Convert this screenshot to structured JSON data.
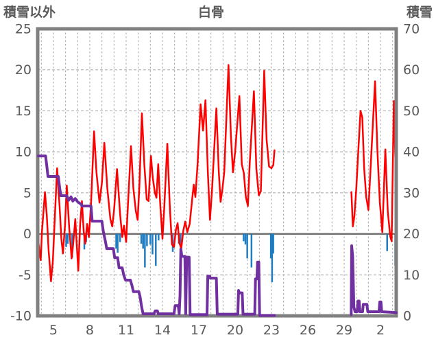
{
  "header": {
    "left_label": "積雪以外",
    "title": "白骨",
    "right_label": "積雪"
  },
  "colors": {
    "temperature_line": "#FF0000",
    "snow_depth_line": "#7030A0",
    "precip_bar": "#1F7DC2",
    "frame": "#808080",
    "zero_line": "#808080",
    "grid": "#A3A3A3",
    "tick_text": "#595959"
  },
  "chart_data": {
    "type": "line",
    "title": "白骨",
    "left_axis": {
      "label": "積雪以外",
      "min": -10,
      "max": 25,
      "ticks": [
        25,
        20,
        15,
        10,
        5,
        0,
        -5,
        -10
      ],
      "grid_step": 5
    },
    "right_axis": {
      "label": "積雪",
      "min": 0,
      "max": 70,
      "ticks": [
        70,
        60,
        50,
        40,
        30,
        20,
        10,
        0
      ]
    },
    "x_axis": {
      "min": 3.7,
      "max": 33.3,
      "grid_day_step": 1,
      "tick_labels": [
        {
          "day": 5,
          "label": "5"
        },
        {
          "day": 8,
          "label": "8"
        },
        {
          "day": 11,
          "label": "11"
        },
        {
          "day": 14,
          "label": "14"
        },
        {
          "day": 17,
          "label": "17"
        },
        {
          "day": 20,
          "label": "20"
        },
        {
          "day": 23,
          "label": "23"
        },
        {
          "day": 26,
          "label": "26"
        },
        {
          "day": 29,
          "label": "29"
        },
        {
          "day": 32,
          "label": "2"
        }
      ]
    },
    "series": [
      {
        "id": "temperature",
        "type": "line",
        "axis": "left",
        "color": "#FF0000",
        "width": 2.5,
        "segments": [
          [
            [
              3.76,
              -1.0
            ],
            [
              3.82,
              -1.8
            ],
            [
              3.95,
              -3.2
            ],
            [
              4.05,
              0.3
            ],
            [
              4.3,
              5.1
            ],
            [
              4.45,
              2.2
            ],
            [
              4.6,
              -2.0
            ],
            [
              4.8,
              -5.8
            ],
            [
              4.95,
              -3.3
            ],
            [
              5.1,
              1.5
            ],
            [
              5.3,
              8.0
            ],
            [
              5.5,
              3.5
            ],
            [
              5.65,
              -0.6
            ],
            [
              5.78,
              -2.4
            ],
            [
              5.95,
              1.0
            ],
            [
              6.1,
              5.9
            ],
            [
              6.3,
              0.8
            ],
            [
              6.5,
              -3.0
            ],
            [
              6.63,
              -1.2
            ],
            [
              6.8,
              1.8
            ],
            [
              7.05,
              -4.5
            ],
            [
              7.2,
              1.0
            ],
            [
              7.35,
              4.0
            ],
            [
              7.5,
              0.3
            ],
            [
              7.62,
              -1.2
            ],
            [
              7.78,
              1.2
            ],
            [
              7.92,
              -0.4
            ],
            [
              8.1,
              3.5
            ],
            [
              8.35,
              12.5
            ],
            [
              8.55,
              7.5
            ],
            [
              8.8,
              3.8
            ],
            [
              9.0,
              6.2
            ],
            [
              9.2,
              11.1
            ],
            [
              9.45,
              5.5
            ],
            [
              9.7,
              1.8
            ],
            [
              9.85,
              0.9
            ],
            [
              10.0,
              2.8
            ],
            [
              10.25,
              7.9
            ],
            [
              10.5,
              2.5
            ],
            [
              10.68,
              -0.4
            ],
            [
              10.82,
              1.0
            ],
            [
              11.0,
              -1.0
            ],
            [
              11.15,
              3.5
            ],
            [
              11.4,
              10.7
            ],
            [
              11.6,
              5.5
            ],
            [
              11.8,
              2.8
            ],
            [
              11.95,
              1.7
            ],
            [
              12.1,
              6.0
            ],
            [
              12.3,
              14.7
            ],
            [
              12.5,
              8.5
            ],
            [
              12.7,
              4.2
            ],
            [
              12.85,
              4.0
            ],
            [
              13.05,
              9.5
            ],
            [
              13.2,
              6.8
            ],
            [
              13.38,
              5.0
            ],
            [
              13.5,
              4.4
            ],
            [
              13.65,
              8.5
            ],
            [
              13.82,
              3.5
            ],
            [
              14.0,
              -0.6
            ],
            [
              14.15,
              3.2
            ],
            [
              14.4,
              11.0
            ],
            [
              14.6,
              3.5
            ],
            [
              14.78,
              -1.3
            ],
            [
              14.95,
              -1.6
            ],
            [
              15.1,
              0.4
            ],
            [
              15.25,
              1.3
            ],
            [
              15.4,
              -1.1
            ],
            [
              15.55,
              -1.8
            ],
            [
              15.72,
              0.4
            ],
            [
              15.88,
              1.5
            ],
            [
              16.05,
              0.2
            ],
            [
              16.25,
              1.2
            ],
            [
              16.45,
              4.2
            ],
            [
              16.58,
              6.0
            ],
            [
              16.72,
              4.5
            ],
            [
              16.9,
              8.5
            ],
            [
              17.15,
              15.8
            ],
            [
              17.35,
              12.6
            ],
            [
              17.55,
              16.3
            ],
            [
              17.75,
              7.5
            ],
            [
              17.92,
              1.7
            ],
            [
              18.1,
              5.5
            ],
            [
              18.45,
              15.3
            ],
            [
              18.65,
              7.5
            ],
            [
              18.8,
              3.9
            ],
            [
              18.95,
              5.5
            ],
            [
              19.1,
              7.5
            ],
            [
              19.45,
              20.6
            ],
            [
              19.65,
              12.0
            ],
            [
              19.82,
              7.5
            ],
            [
              20.0,
              10.0
            ],
            [
              20.35,
              16.8
            ],
            [
              20.55,
              8.5
            ],
            [
              20.72,
              7.4
            ],
            [
              20.88,
              4.5
            ],
            [
              21.05,
              3.4
            ],
            [
              21.2,
              8.5
            ],
            [
              21.55,
              17.4
            ],
            [
              21.75,
              8.0
            ],
            [
              21.95,
              4.7
            ],
            [
              22.12,
              5.2
            ],
            [
              22.4,
              19.9
            ],
            [
              22.6,
              11.5
            ],
            [
              22.8,
              8.2
            ],
            [
              23.0,
              8.0
            ],
            [
              23.15,
              8.4
            ],
            [
              23.25,
              10.2
            ]
          ],
          [
            [
              29.6,
              5.1
            ],
            [
              29.72,
              0.9
            ],
            [
              29.85,
              2.2
            ],
            [
              30.0,
              5.5
            ],
            [
              30.18,
              10.5
            ],
            [
              30.35,
              15.0
            ],
            [
              30.5,
              14.2
            ],
            [
              30.65,
              8.0
            ],
            [
              30.82,
              4.5
            ],
            [
              31.0,
              2.9
            ],
            [
              31.2,
              8.5
            ],
            [
              31.55,
              18.6
            ],
            [
              31.75,
              10.0
            ],
            [
              31.95,
              3.8
            ],
            [
              32.15,
              0.2
            ],
            [
              32.4,
              10.3
            ],
            [
              32.6,
              2.8
            ],
            [
              32.8,
              -0.3
            ],
            [
              32.92,
              -0.9
            ],
            [
              33.1,
              16.2
            ],
            [
              33.22,
              9.5
            ],
            [
              33.3,
              6.9
            ]
          ]
        ]
      },
      {
        "id": "snow_depth",
        "type": "line",
        "axis": "right",
        "color": "#7030A0",
        "width": 4,
        "segments": [
          [
            [
              3.76,
              39
            ],
            [
              4.35,
              39
            ],
            [
              4.45,
              36.5
            ],
            [
              4.55,
              34
            ],
            [
              5.4,
              34
            ],
            [
              5.52,
              31
            ],
            [
              5.62,
              29.3
            ],
            [
              6.1,
              29.3
            ],
            [
              6.25,
              28.2
            ],
            [
              6.45,
              29.0
            ],
            [
              6.6,
              28.0
            ],
            [
              6.8,
              28.6
            ],
            [
              7.0,
              27.8
            ],
            [
              7.3,
              27.2
            ],
            [
              7.35,
              26.8
            ],
            [
              8.1,
              26.8
            ],
            [
              8.2,
              23.1
            ],
            [
              9.0,
              23.1
            ],
            [
              9.12,
              20.5
            ],
            [
              9.28,
              18.3
            ],
            [
              9.4,
              16.4
            ],
            [
              9.95,
              16.4
            ],
            [
              10.05,
              14.2
            ],
            [
              10.3,
              14.2
            ],
            [
              10.42,
              11.7
            ],
            [
              10.68,
              11.7
            ],
            [
              10.8,
              10.0
            ],
            [
              10.95,
              8.7
            ],
            [
              11.35,
              8.7
            ],
            [
              11.48,
              7.4
            ],
            [
              11.6,
              5.9
            ],
            [
              12.05,
              5.9
            ],
            [
              12.15,
              4.7
            ],
            [
              12.28,
              2.2
            ],
            [
              12.4,
              0.5
            ],
            [
              13.3,
              0.5
            ],
            [
              13.4,
              1.2
            ],
            [
              13.58,
              1.2
            ],
            [
              13.65,
              0.5
            ],
            [
              14.95,
              0.5
            ],
            [
              15.05,
              2.5
            ],
            [
              15.3,
              2.5
            ],
            [
              15.38,
              0.5
            ],
            [
              15.45,
              5.0
            ],
            [
              15.52,
              16.3
            ],
            [
              15.6,
              14.5
            ],
            [
              15.85,
              14.5
            ],
            [
              15.92,
              0.5
            ],
            [
              16.0,
              14.3
            ],
            [
              16.2,
              14.3
            ],
            [
              16.28,
              0.3
            ],
            [
              17.68,
              0.3
            ],
            [
              17.74,
              9.7
            ],
            [
              17.9,
              9.7
            ],
            [
              17.95,
              9.2
            ],
            [
              18.45,
              9.2
            ],
            [
              18.52,
              0.4
            ],
            [
              20.22,
              0.4
            ],
            [
              20.28,
              6.2
            ],
            [
              20.35,
              5.6
            ],
            [
              20.58,
              5.6
            ],
            [
              20.65,
              0.4
            ],
            [
              21.62,
              0.4
            ],
            [
              21.68,
              9.0
            ],
            [
              21.8,
              9.0
            ],
            [
              21.85,
              13.1
            ],
            [
              21.95,
              13.1
            ],
            [
              22.02,
              0.1
            ],
            [
              23.25,
              0.1
            ]
          ],
          [
            [
              29.58,
              0.3
            ],
            [
              29.62,
              17.1
            ],
            [
              29.7,
              14.5
            ],
            [
              29.8,
              2.2
            ],
            [
              29.9,
              1.0
            ],
            [
              30.08,
              1.0
            ],
            [
              30.14,
              3.6
            ],
            [
              30.24,
              3.6
            ],
            [
              30.3,
              1.0
            ],
            [
              30.52,
              1.0
            ],
            [
              30.58,
              2.8
            ],
            [
              30.88,
              2.8
            ],
            [
              30.95,
              1.0
            ],
            [
              31.88,
              1.0
            ],
            [
              31.94,
              3.4
            ],
            [
              32.04,
              3.4
            ],
            [
              32.1,
              1.0
            ],
            [
              33.3,
              0.8
            ]
          ]
        ]
      },
      {
        "id": "precipitation",
        "type": "bar",
        "axis": "left",
        "color": "#1F7DC2",
        "bar_width": 2.5,
        "points": [
          [
            6.05,
            -1.6
          ],
          [
            6.18,
            -1.2
          ],
          [
            6.55,
            -2.9
          ],
          [
            7.55,
            -1.9
          ],
          [
            7.7,
            -1.0
          ],
          [
            10.18,
            -1.8
          ],
          [
            10.3,
            -2.3
          ],
          [
            10.5,
            -1.0
          ],
          [
            12.25,
            -1.2
          ],
          [
            12.4,
            -1.8
          ],
          [
            12.55,
            -4.1
          ],
          [
            12.72,
            -1.5
          ],
          [
            13.0,
            -1.3
          ],
          [
            13.18,
            -2.5
          ],
          [
            13.45,
            -3.9
          ],
          [
            13.68,
            -0.8
          ],
          [
            14.85,
            -2.2
          ],
          [
            15.35,
            -1.2
          ],
          [
            15.5,
            -1.6
          ],
          [
            20.7,
            -0.9
          ],
          [
            20.85,
            -1.3
          ],
          [
            21.0,
            -3.0
          ],
          [
            21.35,
            -4.1
          ],
          [
            22.95,
            -3.0
          ],
          [
            23.05,
            -5.9
          ],
          [
            23.15,
            -2.4
          ],
          [
            32.55,
            -2.1
          ],
          [
            33.25,
            -3.9
          ]
        ]
      }
    ]
  }
}
